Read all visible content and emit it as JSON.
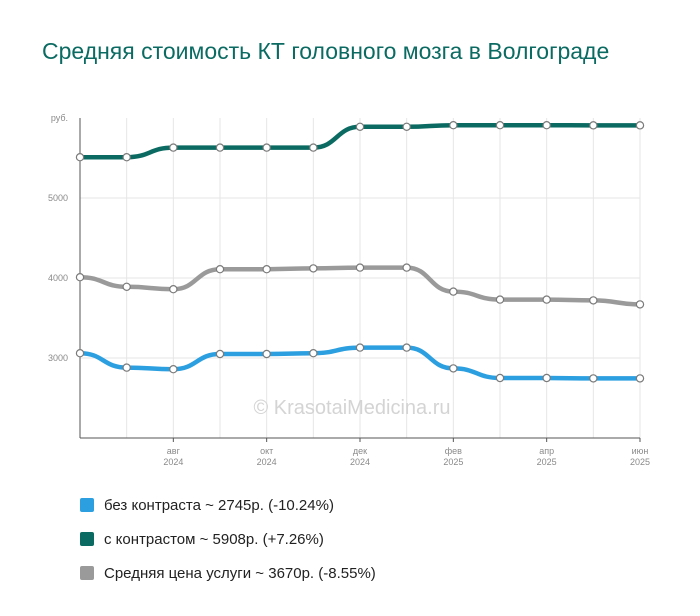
{
  "page_title": "Средняя стоимость КТ головного мозга в Волгограде",
  "watermark": "© KrasotaiMedicina.ru",
  "chart_data": {
    "type": "line",
    "title": "Средняя стоимость КТ головного мозга в Волгограде",
    "ylabel": "руб.",
    "ylim": [
      2000,
      6000
    ],
    "yticks": [
      3000,
      4000,
      5000
    ],
    "x": [
      "2024-06",
      "2024-07",
      "2024-08",
      "2024-09",
      "2024-10",
      "2024-11",
      "2024-12",
      "2025-01",
      "2025-02",
      "2025-03",
      "2025-04",
      "2025-05",
      "2025-06"
    ],
    "x_ticks": [
      {
        "label": "авг",
        "year": "2024"
      },
      {
        "label": "окт",
        "year": "2024"
      },
      {
        "label": "дек",
        "year": "2024"
      },
      {
        "label": "фев",
        "year": "2025"
      },
      {
        "label": "апр",
        "year": "2025"
      },
      {
        "label": "июн",
        "year": "2025"
      }
    ],
    "grid": true,
    "series": [
      {
        "name": "без контраста",
        "color": "#2b9fe0",
        "values": [
          3060,
          2880,
          2860,
          3050,
          3050,
          3060,
          3130,
          3130,
          2870,
          2750,
          2750,
          2745,
          2745
        ]
      },
      {
        "name": "с контрастом",
        "color": "#0b6b62",
        "values": [
          5510,
          5510,
          5630,
          5630,
          5630,
          5630,
          5890,
          5890,
          5910,
          5910,
          5910,
          5908,
          5908
        ]
      },
      {
        "name": "Средняя цена услуги",
        "color": "#9a9a9a",
        "values": [
          4010,
          3890,
          3860,
          4110,
          4110,
          4120,
          4130,
          4130,
          3830,
          3730,
          3730,
          3720,
          3670
        ]
      }
    ]
  },
  "legend": [
    {
      "text": "без контраста ~ 2745р. (-10.24%)",
      "color": "#2b9fe0"
    },
    {
      "text": "с контрастом ~ 5908р. (+7.26%)",
      "color": "#0b6b62"
    },
    {
      "text": "Средняя цена услуги ~ 3670р. (-8.55%)",
      "color": "#9a9a9a"
    }
  ]
}
